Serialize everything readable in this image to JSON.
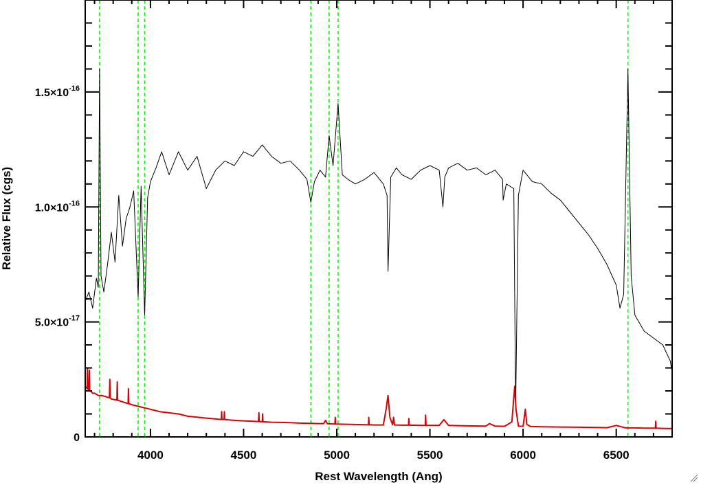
{
  "chart_data": {
    "type": "line",
    "title": "",
    "xlabel": "Rest Wavelength (Ang)",
    "ylabel": "Relative Flux (cgs)",
    "xlim": [
      3650,
      6800
    ],
    "ylim": [
      0,
      1.9e-16
    ],
    "x_tick_labels": [
      {
        "value": 4000,
        "label": "4000"
      },
      {
        "value": 4500,
        "label": "4500"
      },
      {
        "value": 5000,
        "label": "5000"
      },
      {
        "value": 5500,
        "label": "5500"
      },
      {
        "value": 6000,
        "label": "6000"
      },
      {
        "value": 6500,
        "label": "6500"
      }
    ],
    "y_tick_labels": [
      {
        "value": 0,
        "mantissa": "0",
        "exponent": ""
      },
      {
        "value": 5e-17,
        "mantissa": "5.0×10",
        "exponent": "-17"
      },
      {
        "value": 1e-16,
        "mantissa": "1.0×10",
        "exponent": "-16"
      },
      {
        "value": 1.5e-16,
        "mantissa": "1.5×10",
        "exponent": "-16"
      }
    ],
    "grid": false,
    "legend": "none",
    "reference_lines": {
      "style": "dashed",
      "color": "#00ff00",
      "x": [
        3727,
        3934,
        3969,
        4861,
        4959,
        5007,
        6563
      ]
    },
    "series": [
      {
        "color": "#000000",
        "x": [
          3650,
          3670,
          3690,
          3710,
          3720,
          3727,
          3735,
          3750,
          3770,
          3790,
          3810,
          3830,
          3850,
          3870,
          3890,
          3910,
          3934,
          3950,
          3969,
          3985,
          4000,
          4030,
          4060,
          4100,
          4150,
          4200,
          4250,
          4300,
          4350,
          4400,
          4450,
          4500,
          4550,
          4600,
          4650,
          4700,
          4750,
          4800,
          4840,
          4861,
          4880,
          4910,
          4940,
          4959,
          4980,
          5007,
          5030,
          5060,
          5100,
          5150,
          5200,
          5250,
          5270,
          5275,
          5290,
          5320,
          5350,
          5400,
          5450,
          5500,
          5550,
          5570,
          5580,
          5600,
          5650,
          5700,
          5750,
          5800,
          5850,
          5890,
          5893,
          5910,
          5950,
          5960,
          5975,
          6000,
          6050,
          6100,
          6150,
          6200,
          6250,
          6300,
          6350,
          6400,
          6450,
          6500,
          6520,
          6540,
          6563,
          6580,
          6600,
          6650,
          6700,
          6750,
          6790,
          6800
        ],
        "y": [
          5.9e-17,
          6.3e-17,
          5.6e-17,
          6.9e-17,
          6.5e-17,
          1.6e-16,
          7e-17,
          6.3e-17,
          7.5e-17,
          8.9e-17,
          7.6e-17,
          1.05e-16,
          8.3e-17,
          9.5e-17,
          1e-16,
          1.07e-16,
          6.1e-17,
          1.09e-16,
          5.3e-17,
          1.04e-16,
          1.11e-16,
          1.17e-16,
          1.24e-16,
          1.14e-16,
          1.24e-16,
          1.16e-16,
          1.22e-16,
          1.08e-16,
          1.16e-16,
          1.2e-16,
          1.18e-16,
          1.24e-16,
          1.22e-16,
          1.27e-16,
          1.22e-16,
          1.19e-16,
          1.2e-16,
          1.16e-16,
          1.12e-16,
          1.02e-16,
          1.11e-16,
          1.16e-16,
          1.13e-16,
          1.31e-16,
          1.18e-16,
          1.45e-16,
          1.14e-16,
          1.12e-16,
          1.1e-16,
          1.12e-16,
          1.15e-16,
          1.1e-16,
          1.05e-16,
          7.2e-17,
          1.13e-16,
          1.17e-16,
          1.14e-16,
          1.12e-16,
          1.16e-16,
          1.18e-16,
          1.16e-16,
          1e-16,
          1.13e-16,
          1.17e-16,
          1.19e-16,
          1.16e-16,
          1.17e-16,
          1.14e-16,
          1.16e-16,
          1.12e-16,
          1.03e-16,
          1.1e-16,
          1.08e-16,
          1.2e-17,
          1.05e-16,
          1.16e-16,
          1.11e-16,
          1.1e-16,
          1.06e-16,
          1.03e-16,
          9.8e-17,
          9.3e-17,
          8.8e-17,
          8.2e-17,
          7.5e-17,
          6.6e-17,
          5.6e-17,
          6.2e-17,
          1.6e-16,
          7e-17,
          5.3e-17,
          4.6e-17,
          4.3e-17,
          4e-17,
          3.3e-17,
          2.8e-17
        ]
      },
      {
        "color": "#dd0000",
        "x": [
          3650,
          3660,
          3662,
          3664,
          3670,
          3672,
          3674,
          3680,
          3690,
          3700,
          3720,
          3740,
          3760,
          3780,
          3782,
          3784,
          3790,
          3820,
          3822,
          3824,
          3840,
          3880,
          3882,
          3884,
          3900,
          3950,
          4000,
          4050,
          4100,
          4150,
          4200,
          4250,
          4300,
          4350,
          4380,
          4382,
          4384,
          4395,
          4397,
          4399,
          4420,
          4450,
          4500,
          4550,
          4580,
          4582,
          4584,
          4600,
          4602,
          4604,
          4650,
          4700,
          4750,
          4800,
          4861,
          4900,
          4930,
          4940,
          4950,
          4990,
          4992,
          4994,
          5050,
          5100,
          5150,
          5170,
          5172,
          5174,
          5200,
          5250,
          5265,
          5275,
          5285,
          5300,
          5305,
          5310,
          5350,
          5385,
          5387,
          5389,
          5450,
          5475,
          5477,
          5479,
          5500,
          5550,
          5575,
          5600,
          5650,
          5700,
          5800,
          5820,
          5850,
          5900,
          5940,
          5955,
          5962,
          5975,
          6000,
          6012,
          6020,
          6040,
          6100,
          6200,
          6300,
          6400,
          6450,
          6500,
          6550,
          6600,
          6650,
          6700,
          6710,
          6712,
          6714,
          6750,
          6800
        ],
        "y": [
          2.2e-17,
          2.1e-17,
          3e-17,
          2.1e-17,
          2e-17,
          2.9e-17,
          2e-17,
          2e-17,
          1.9e-17,
          1.9e-17,
          1.8e-17,
          1.8e-17,
          1.75e-17,
          1.7e-17,
          2.5e-17,
          1.7e-17,
          1.65e-17,
          1.6e-17,
          2.4e-17,
          1.6e-17,
          1.55e-17,
          1.45e-17,
          2.1e-17,
          1.45e-17,
          1.4e-17,
          1.3e-17,
          1.2e-17,
          1.1e-17,
          1.05e-17,
          1e-17,
          9e-18,
          8.6e-18,
          8.2e-18,
          7.8e-18,
          7.6e-18,
          1.1e-17,
          7.6e-18,
          7.6e-18,
          1.1e-17,
          7.6e-18,
          7.4e-18,
          7.2e-18,
          7e-18,
          6.8e-18,
          6.7e-18,
          1.05e-17,
          6.7e-18,
          6.6e-18,
          1e-17,
          6.6e-18,
          6.4e-18,
          6.3e-18,
          6.2e-18,
          6e-18,
          5.9e-18,
          5.8e-18,
          5.8e-18,
          7.2e-18,
          5.7e-18,
          5.6e-18,
          8.5e-18,
          5.6e-18,
          5.5e-18,
          5.4e-18,
          5.3e-18,
          5.3e-18,
          8.5e-18,
          5.3e-18,
          5.2e-18,
          5.2e-18,
          1.2e-17,
          1.8e-17,
          8.5e-18,
          5.3e-18,
          8.5e-18,
          5.2e-18,
          5.1e-18,
          5.1e-18,
          8e-18,
          5.1e-18,
          5e-18,
          5e-18,
          9.5e-18,
          5e-18,
          5e-18,
          5e-18,
          7.5e-18,
          5e-18,
          4.9e-18,
          4.8e-18,
          4.7e-18,
          5.8e-18,
          4.7e-18,
          4.6e-18,
          6.5e-18,
          2.2e-17,
          1.2e-17,
          4.7e-18,
          4.6e-18,
          1.2e-17,
          5.5e-18,
          4.5e-18,
          4.4e-18,
          4.3e-18,
          4.2e-18,
          4.1e-18,
          4e-18,
          5e-18,
          3.9e-18,
          3.9e-18,
          3.8e-18,
          3.8e-18,
          3.8e-18,
          6.8e-18,
          3.8e-18,
          3.7e-18,
          3.6e-18
        ]
      }
    ]
  }
}
